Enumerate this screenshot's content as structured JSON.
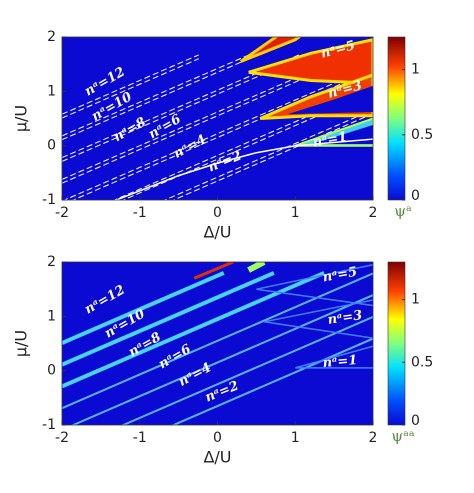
{
  "chart_data": [
    {
      "type": "heatmap",
      "xlabel": "Δ/U",
      "ylabel": "μ/U",
      "xlim": [
        -2,
        2
      ],
      "ylim": [
        -1,
        2
      ],
      "xticks": [
        -2,
        -1,
        0,
        1,
        2
      ],
      "yticks": [
        -1,
        0,
        1,
        2
      ],
      "colorbar": {
        "label": "ψᵃ",
        "lim": [
          0,
          1.25
        ],
        "ticks": [
          0,
          0.5,
          1
        ]
      },
      "annotations": [
        "nᵃ=12",
        "nᵃ=10",
        "nᵃ=8",
        "nᵃ=6",
        "nᵃ=4",
        "nᵃ=2",
        "nᵃ=5",
        "nᵃ=3",
        "nᵃ=1"
      ]
    },
    {
      "type": "heatmap",
      "xlabel": "Δ/U",
      "ylabel": "μ/U",
      "xlim": [
        -2,
        2
      ],
      "ylim": [
        -1,
        2
      ],
      "xticks": [
        -2,
        -1,
        0,
        1,
        2
      ],
      "yticks": [
        -1,
        0,
        1,
        2
      ],
      "colorbar": {
        "label": "ψᵃᵃ",
        "lim": [
          0,
          1.3
        ],
        "ticks": [
          0,
          0.5,
          1
        ]
      },
      "annotations": [
        "nᵃ=12",
        "nᵃ=10",
        "nᵃ=8",
        "nᵃ=6",
        "nᵃ=4",
        "nᵃ=2",
        "nᵃ=5",
        "nᵃ=3",
        "nᵃ=1"
      ]
    }
  ]
}
